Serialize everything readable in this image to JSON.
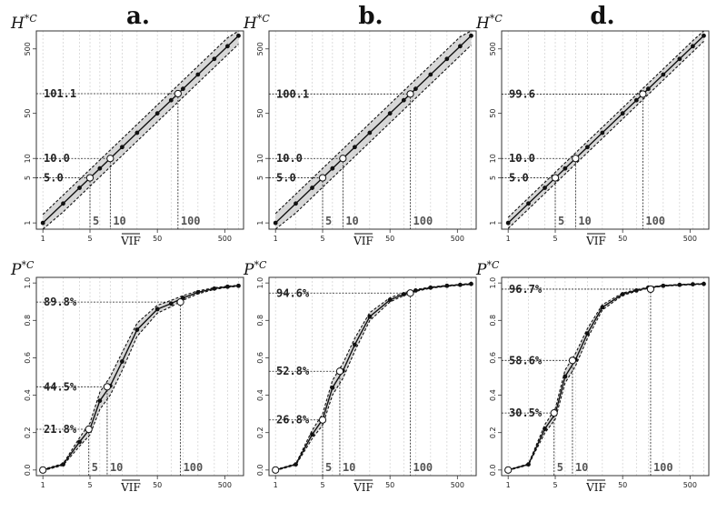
{
  "figure": {
    "panel_letters": [
      "a.",
      "b.",
      "d."
    ],
    "row_labels": {
      "top": "H",
      "bottom": "P",
      "superscript": "*C"
    },
    "x_label": "VIF"
  },
  "chart_data": [
    {
      "panel": "a.",
      "row": "top",
      "type": "line",
      "x_scale": "log",
      "y_scale": "log",
      "xlabel": "VIF",
      "ylabel": "H*C",
      "xlim": [
        0.8,
        950
      ],
      "ylim": [
        0.8,
        950
      ],
      "x_ticks": [
        1,
        5,
        50,
        500
      ],
      "x_tick_labels": [
        "1",
        "5",
        "50",
        "500"
      ],
      "y_ticks": [
        1,
        5,
        10,
        50,
        500
      ],
      "y_tick_labels": [
        "1",
        "5",
        "10",
        "50",
        "500"
      ],
      "x": [
        1,
        2,
        3.5,
        5,
        7,
        10,
        15,
        25,
        50,
        80,
        120,
        200,
        350,
        550,
        800
      ],
      "y": [
        1,
        2,
        3.5,
        5,
        7,
        10,
        15,
        25,
        50,
        80,
        120,
        200,
        350,
        550,
        800
      ],
      "band_factor": 1.35,
      "open_points": [
        {
          "x": 5,
          "y": 5
        },
        {
          "x": 10,
          "y": 10
        },
        {
          "x": 101.1,
          "y": 101.1
        }
      ],
      "reference_lines": [
        {
          "label": "5.0",
          "x": 5,
          "y": 5
        },
        {
          "label": "10.0",
          "x": 10,
          "y": 10
        },
        {
          "label": "101.1",
          "x": 101.1,
          "y": 101.1
        }
      ],
      "vline_labels": [
        "5",
        "10",
        "100"
      ]
    },
    {
      "panel": "b.",
      "row": "top",
      "type": "line",
      "x_scale": "log",
      "y_scale": "log",
      "xlabel": "VIF",
      "ylabel": "H*C",
      "xlim": [
        0.8,
        950
      ],
      "ylim": [
        0.8,
        950
      ],
      "x_ticks": [
        1,
        5,
        50,
        500
      ],
      "x_tick_labels": [
        "1",
        "5",
        "50",
        "500"
      ],
      "y_ticks": [
        1,
        5,
        10,
        50,
        500
      ],
      "y_tick_labels": [
        "1",
        "5",
        "10",
        "50",
        "500"
      ],
      "x": [
        1,
        2,
        3.5,
        5,
        7,
        10,
        15,
        25,
        50,
        80,
        120,
        200,
        350,
        550,
        800
      ],
      "y": [
        1,
        2,
        3.5,
        5,
        7,
        10,
        15,
        25,
        50,
        80,
        120,
        200,
        350,
        550,
        800
      ],
      "band_factor": 1.4,
      "open_points": [
        {
          "x": 5,
          "y": 5
        },
        {
          "x": 10,
          "y": 10
        },
        {
          "x": 100.1,
          "y": 100.1
        }
      ],
      "reference_lines": [
        {
          "label": "5.0",
          "x": 5,
          "y": 5
        },
        {
          "label": "10.0",
          "x": 10,
          "y": 10
        },
        {
          "label": "100.1",
          "x": 100.1,
          "y": 100.1
        }
      ],
      "vline_labels": [
        "5",
        "10",
        "100"
      ]
    },
    {
      "panel": "d.",
      "row": "top",
      "type": "line",
      "x_scale": "log",
      "y_scale": "log",
      "xlabel": "VIF",
      "ylabel": "H*C",
      "xlim": [
        0.8,
        950
      ],
      "ylim": [
        0.8,
        950
      ],
      "x_ticks": [
        1,
        5,
        50,
        500
      ],
      "x_tick_labels": [
        "1",
        "5",
        "50",
        "500"
      ],
      "y_ticks": [
        1,
        5,
        10,
        50,
        500
      ],
      "y_tick_labels": [
        "1",
        "5",
        "10",
        "50",
        "500"
      ],
      "x": [
        1,
        2,
        3.5,
        5,
        7,
        10,
        15,
        25,
        50,
        80,
        120,
        200,
        350,
        550,
        800
      ],
      "y": [
        1,
        2,
        3.5,
        5,
        7,
        10,
        15,
        25,
        50,
        80,
        120,
        200,
        350,
        550,
        800
      ],
      "band_factor": 1.22,
      "open_points": [
        {
          "x": 5,
          "y": 5
        },
        {
          "x": 10,
          "y": 10
        },
        {
          "x": 99.6,
          "y": 99.6
        }
      ],
      "reference_lines": [
        {
          "label": "5.0",
          "x": 5,
          "y": 5
        },
        {
          "label": "10.0",
          "x": 10,
          "y": 10
        },
        {
          "label": "99.6",
          "x": 99.6,
          "y": 99.6
        }
      ],
      "vline_labels": [
        "5",
        "10",
        "100"
      ]
    },
    {
      "panel": "a.",
      "row": "bottom",
      "type": "line",
      "x_scale": "log",
      "y_scale": "linear",
      "xlabel": "VIF",
      "ylabel": "P*C",
      "xlim": [
        0.8,
        950
      ],
      "ylim": [
        -0.03,
        1.03
      ],
      "x_ticks": [
        1,
        5,
        50,
        500
      ],
      "x_tick_labels": [
        "1",
        "5",
        "50",
        "500"
      ],
      "y_ticks": [
        0,
        0.2,
        0.4,
        0.6,
        0.8,
        1.0
      ],
      "y_tick_labels": [
        "0.0",
        "0.2",
        "0.4",
        "0.6",
        "0.8",
        "1.0"
      ],
      "x": [
        1,
        2,
        3.5,
        5,
        7,
        10,
        15,
        25,
        50,
        80,
        120,
        200,
        350,
        550,
        800
      ],
      "y": [
        0.0,
        0.03,
        0.15,
        0.22,
        0.37,
        0.45,
        0.58,
        0.75,
        0.86,
        0.89,
        0.92,
        0.95,
        0.97,
        0.98,
        0.985
      ],
      "band_offset": 0.05,
      "open_points": [
        {
          "x": 1,
          "y": 0.0
        },
        {
          "x": 4.8,
          "y": 0.218
        },
        {
          "x": 9,
          "y": 0.445
        },
        {
          "x": 110,
          "y": 0.898
        }
      ],
      "reference_lines": [
        {
          "label": "21.8%",
          "x": 4.8,
          "y": 0.218
        },
        {
          "label": "44.5%",
          "x": 9,
          "y": 0.445
        },
        {
          "label": "89.8%",
          "x": 110,
          "y": 0.898
        }
      ],
      "vline_labels": [
        "5",
        "10",
        "100"
      ]
    },
    {
      "panel": "b.",
      "row": "bottom",
      "type": "line",
      "x_scale": "log",
      "y_scale": "linear",
      "xlabel": "VIF",
      "ylabel": "P*C",
      "xlim": [
        0.8,
        950
      ],
      "ylim": [
        -0.03,
        1.03
      ],
      "x_ticks": [
        1,
        5,
        50,
        500
      ],
      "x_tick_labels": [
        "1",
        "5",
        "50",
        "500"
      ],
      "y_ticks": [
        0,
        0.2,
        0.4,
        0.6,
        0.8,
        1.0
      ],
      "y_tick_labels": [
        "0.0",
        "0.2",
        "0.4",
        "0.6",
        "0.8",
        "1.0"
      ],
      "x": [
        1,
        2,
        3.5,
        5,
        7,
        10,
        15,
        25,
        50,
        80,
        120,
        200,
        350,
        550,
        800
      ],
      "y": [
        0.0,
        0.03,
        0.19,
        0.27,
        0.44,
        0.53,
        0.67,
        0.82,
        0.91,
        0.94,
        0.96,
        0.975,
        0.985,
        0.99,
        0.995
      ],
      "band_offset": 0.04,
      "open_points": [
        {
          "x": 1,
          "y": 0.0
        },
        {
          "x": 5,
          "y": 0.268
        },
        {
          "x": 9,
          "y": 0.528
        },
        {
          "x": 100,
          "y": 0.946
        }
      ],
      "reference_lines": [
        {
          "label": "26.8%",
          "x": 5,
          "y": 0.268
        },
        {
          "label": "52.8%",
          "x": 9,
          "y": 0.528
        },
        {
          "label": "94.6%",
          "x": 100,
          "y": 0.946
        }
      ],
      "vline_labels": [
        "5",
        "10",
        "100"
      ]
    },
    {
      "panel": "d.",
      "row": "bottom",
      "type": "line",
      "x_scale": "log",
      "y_scale": "linear",
      "xlabel": "VIF",
      "ylabel": "P*C",
      "xlim": [
        0.8,
        950
      ],
      "ylim": [
        -0.03,
        1.03
      ],
      "x_ticks": [
        1,
        5,
        50,
        500
      ],
      "x_tick_labels": [
        "1",
        "5",
        "50",
        "500"
      ],
      "y_ticks": [
        0,
        0.2,
        0.4,
        0.6,
        0.8,
        1.0
      ],
      "y_tick_labels": [
        "0.0",
        "0.2",
        "0.4",
        "0.6",
        "0.8",
        "1.0"
      ],
      "x": [
        1,
        2,
        3.5,
        5,
        7,
        10,
        15,
        25,
        50,
        80,
        120,
        200,
        350,
        550,
        800
      ],
      "y": [
        0.0,
        0.03,
        0.22,
        0.3,
        0.5,
        0.59,
        0.73,
        0.87,
        0.94,
        0.96,
        0.975,
        0.985,
        0.99,
        0.993,
        0.995
      ],
      "band_offset": 0.035,
      "open_points": [
        {
          "x": 1,
          "y": 0.0
        },
        {
          "x": 4.8,
          "y": 0.305
        },
        {
          "x": 9,
          "y": 0.586
        },
        {
          "x": 130,
          "y": 0.967
        }
      ],
      "reference_lines": [
        {
          "label": "30.5%",
          "x": 4.8,
          "y": 0.305
        },
        {
          "label": "58.6%",
          "x": 9,
          "y": 0.586
        },
        {
          "label": "96.7%",
          "x": 130,
          "y": 0.967
        }
      ],
      "vline_labels": [
        "5",
        "10",
        "100"
      ]
    }
  ]
}
